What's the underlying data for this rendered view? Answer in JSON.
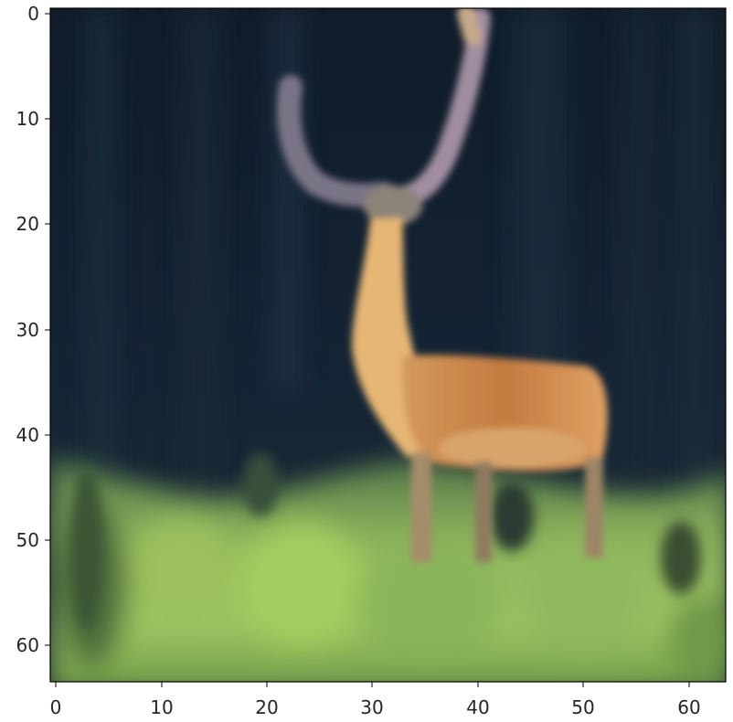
{
  "chart_data": {
    "type": "heatmap",
    "content": "image",
    "x_ticks": [
      "0",
      "10",
      "20",
      "30",
      "40",
      "50",
      "60"
    ],
    "y_ticks": [
      "0",
      "10",
      "20",
      "30",
      "40",
      "50",
      "60"
    ],
    "xlim": [
      -0.5,
      63.5
    ],
    "ylim": [
      63.5,
      -0.5
    ],
    "grid": false,
    "colors": {
      "background": "#ffffff",
      "axis_spine": "#000000",
      "tick_text": "#262626",
      "night_sky": "#12202f",
      "dark_foliage": "#1c2d3c",
      "meadow_light": "#9cc25f",
      "meadow_dark": "#4f7a3c",
      "deer_neck": "#e8b877",
      "deer_body": "#c98448",
      "antler": "#8a7f8e"
    }
  }
}
